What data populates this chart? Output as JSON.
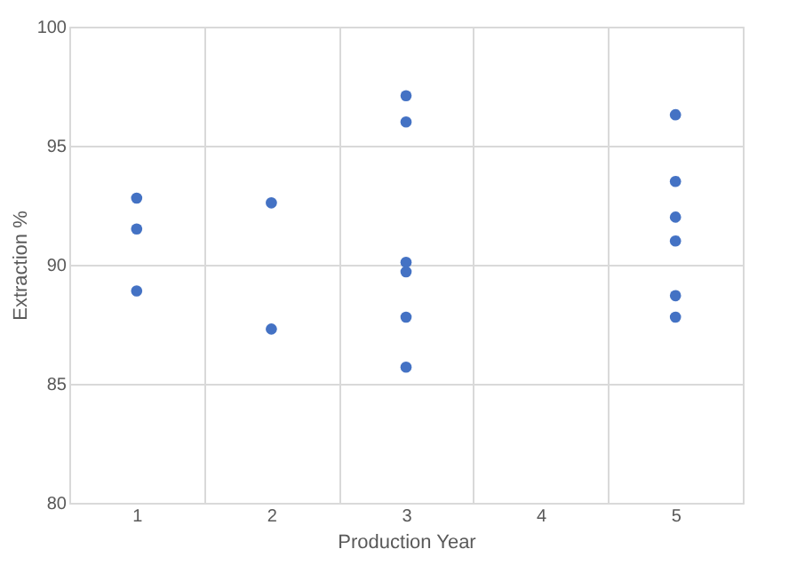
{
  "chart_data": {
    "type": "scatter",
    "xlabel": "Production Year",
    "ylabel": "Extraction %",
    "categories": [
      "1",
      "2",
      "3",
      "4",
      "5"
    ],
    "series": [
      {
        "color": "#4472c4",
        "x": [
          "1",
          "1",
          "1",
          "2",
          "2",
          "3",
          "3",
          "3",
          "3",
          "3",
          "3",
          "5",
          "5",
          "5",
          "5",
          "5",
          "5"
        ],
        "values": [
          92.8,
          91.5,
          88.9,
          92.6,
          87.3,
          97.1,
          96.0,
          90.1,
          89.7,
          87.8,
          85.7,
          96.3,
          93.5,
          92.0,
          91.0,
          88.7,
          87.8
        ]
      }
    ],
    "ylim": [
      80,
      100
    ],
    "yticks": [
      80,
      85,
      90,
      95,
      100
    ],
    "grid": true,
    "marker": "circle",
    "legend": false
  }
}
